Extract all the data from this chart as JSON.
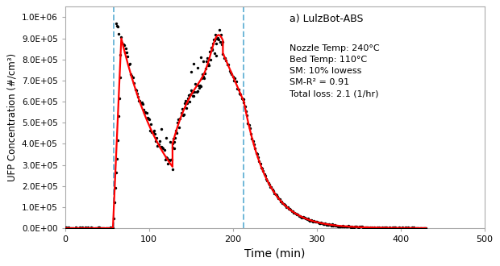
{
  "xlabel": "Time (min)",
  "ylabel": "UFP Concentration (#/cm³)",
  "xlim": [
    0,
    500
  ],
  "ylim": [
    0,
    1050000.0
  ],
  "yticks": [
    0,
    100000.0,
    200000.0,
    300000.0,
    400000.0,
    500000.0,
    600000.0,
    700000.0,
    800000.0,
    900000.0,
    1000000.0
  ],
  "ytick_labels": [
    "0.0E+00",
    "1.0E+05",
    "2.0E+05",
    "3.0E+05",
    "4.0E+05",
    "5.0E+05",
    "6.0E+05",
    "7.0E+05",
    "8.0E+05",
    "9.0E+05",
    "1.0E+06"
  ],
  "xticks": [
    0,
    100,
    200,
    300,
    400,
    500
  ],
  "vline1": 58,
  "vline2": 213,
  "vline_color": "#70b8d8",
  "scatter_color": "black",
  "smooth_color": "red",
  "annotation_title": "a) LulzBot-ABS",
  "annotation_lines": [
    "Nozzle Temp: 240°C",
    "Bed Temp: 110°C",
    "SM: 10% lowess",
    "SM-R² = 0.91",
    "Total loss: 2.1 (1/hr)"
  ],
  "background_color": "#ffffff",
  "scatter_size": 6
}
